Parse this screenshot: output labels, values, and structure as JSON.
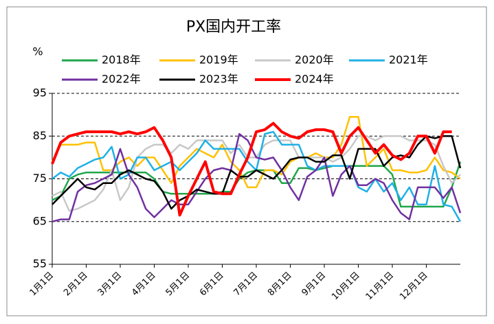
{
  "chart_data": {
    "type": "line",
    "title": "PX国内开工率",
    "y_label": "%",
    "categories": [
      "1月1日",
      null,
      null,
      null,
      "2月1日",
      null,
      null,
      null,
      "3月1日",
      null,
      null,
      null,
      "4月1日",
      null,
      null,
      null,
      "5月1日",
      null,
      null,
      null,
      "6月1日",
      null,
      null,
      null,
      "7月1日",
      null,
      null,
      null,
      "8月1日",
      null,
      null,
      null,
      "9月1日",
      null,
      null,
      null,
      "10月1日",
      null,
      null,
      null,
      "11月1日",
      null,
      null,
      null,
      "12月1日",
      null,
      null,
      null,
      null
    ],
    "series": [
      {
        "name": "2018年",
        "color": "#1fa64a",
        "values": [
          70,
          71,
          75,
          76,
          76.5,
          76.5,
          76.5,
          76.5,
          76.5,
          76.5,
          76.5,
          76.5,
          75,
          72,
          71.5,
          71.5,
          71.5,
          71.5,
          71.5,
          71.5,
          72,
          72,
          75,
          76.5,
          77,
          77,
          77,
          74,
          74,
          77.5,
          77.5,
          77,
          77.5,
          78,
          78,
          78,
          78,
          78,
          78,
          78,
          76,
          68.5,
          68.5,
          68.5,
          68.5,
          68.5,
          68.5,
          73,
          79
        ]
      },
      {
        "name": "2019年",
        "color": "#ffc000",
        "values": [
          79,
          83,
          83,
          83,
          83.5,
          83.5,
          77,
          77,
          79,
          80,
          78,
          80,
          80,
          77,
          74,
          78,
          80,
          82,
          81,
          80,
          83,
          79,
          77,
          73,
          73,
          77,
          77,
          76,
          79,
          80,
          80,
          81,
          80,
          80,
          83,
          89.5,
          89.5,
          78,
          80,
          82,
          77,
          77,
          76.5,
          76.5,
          77,
          80,
          77,
          76.5,
          75
        ]
      },
      {
        "name": "2020年",
        "color": "#c8c8c8",
        "values": [
          71,
          72,
          67.5,
          68,
          69,
          70,
          72.5,
          77,
          70,
          73,
          80,
          82,
          83,
          83,
          81,
          83,
          82,
          84,
          84,
          84,
          84,
          81,
          83,
          80,
          80,
          83,
          84,
          84,
          84,
          80,
          80,
          80,
          80,
          79,
          80,
          82,
          85,
          85,
          84,
          85,
          85,
          85,
          84,
          84,
          84,
          83,
          78,
          74,
          76
        ]
      },
      {
        "name": "2021年",
        "color": "#1fb0e6",
        "values": [
          75,
          76.5,
          75.5,
          77.5,
          78.5,
          79.5,
          80,
          82.5,
          75,
          76,
          80,
          80,
          77,
          78,
          79,
          77,
          79,
          81,
          84,
          82,
          82,
          82,
          82,
          79,
          77,
          85.5,
          86,
          83,
          83,
          83,
          78,
          77,
          78,
          78,
          78,
          78,
          73,
          72,
          75,
          72,
          74,
          70,
          73,
          69,
          69,
          78,
          69,
          68.5,
          65
        ]
      },
      {
        "name": "2022年",
        "color": "#7030a0",
        "values": [
          65,
          65.5,
          65.5,
          72,
          73.5,
          74,
          75,
          76,
          82,
          76,
          73,
          68,
          66,
          68,
          70,
          69,
          69,
          72,
          75,
          77,
          77.5,
          77,
          85.5,
          84,
          80,
          79.5,
          80,
          77,
          73,
          70,
          75.5,
          77,
          80,
          71,
          76,
          78,
          73.5,
          73.5,
          75,
          74,
          70,
          67,
          65.5,
          73,
          73,
          73,
          70.5,
          73,
          67
        ]
      },
      {
        "name": "2023年",
        "color": "#000000",
        "values": [
          69,
          71,
          73,
          75,
          73,
          72.5,
          74,
          74,
          76,
          77,
          76,
          75,
          74.5,
          72,
          68,
          70,
          71,
          72.5,
          72,
          71.5,
          71.5,
          77,
          75.5,
          75.5,
          77,
          76,
          75,
          77,
          79.5,
          80,
          80,
          79,
          79,
          80.5,
          80.5,
          75,
          82,
          82,
          82,
          78,
          80,
          80.5,
          80,
          83,
          85,
          84.5,
          85,
          85,
          77.5
        ]
      },
      {
        "name": "2024年",
        "color": "#ff0000",
        "values": [
          78.5,
          83.5,
          85,
          85.5,
          86,
          86,
          86,
          86,
          85.5,
          86,
          85.5,
          86,
          87,
          84,
          80,
          66.5,
          71,
          75,
          79,
          72,
          71.5,
          71.5,
          76,
          80,
          86,
          86.5,
          88,
          86,
          85,
          84.5,
          86,
          86.5,
          86.5,
          86,
          81,
          85,
          87,
          84,
          81,
          83,
          80.5,
          79.5,
          81,
          85,
          85,
          81,
          86,
          86,
          null
        ]
      }
    ],
    "ylim": [
      55,
      95
    ],
    "yticks": [
      55,
      65,
      75,
      85,
      95
    ],
    "grid": true
  }
}
